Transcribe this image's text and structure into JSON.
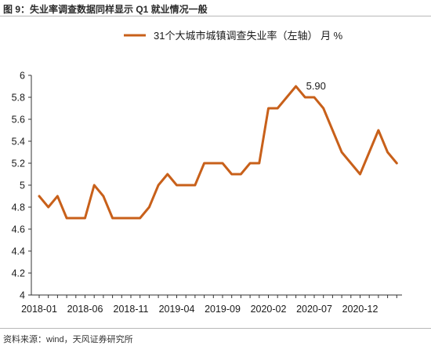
{
  "figure": {
    "title": "图 9：失业率调查数据同样显示 Q1 就业情况一般",
    "source": "资料来源：wind，天风证券研究所"
  },
  "chart_data": {
    "type": "line",
    "x": [
      "2018-01",
      "2018-02",
      "2018-03",
      "2018-04",
      "2018-05",
      "2018-06",
      "2018-07",
      "2018-08",
      "2018-09",
      "2018-10",
      "2018-11",
      "2018-12",
      "2019-01",
      "2019-02",
      "2019-03",
      "2019-04",
      "2019-05",
      "2019-06",
      "2019-07",
      "2019-08",
      "2019-09",
      "2019-10",
      "2019-11",
      "2019-12",
      "2020-01",
      "2020-02",
      "2020-03",
      "2020-04",
      "2020-05",
      "2020-06",
      "2020-07",
      "2020-08",
      "2020-09",
      "2020-10",
      "2020-11",
      "2020-12",
      "2021-01",
      "2021-02",
      "2021-03",
      "2021-04"
    ],
    "xticks": [
      "2018-01",
      "2018-06",
      "2018-11",
      "2019-04",
      "2019-09",
      "2020-02",
      "2020-07",
      "2020-12"
    ],
    "series": [
      {
        "name": "31个大城市城镇调查失业率（左轴） 月 %",
        "color": "#c8601a",
        "values": [
          4.9,
          4.8,
          4.9,
          4.7,
          4.7,
          4.7,
          5.0,
          4.9,
          4.7,
          4.7,
          4.7,
          4.7,
          4.8,
          5.0,
          5.1,
          5.0,
          5.0,
          5.0,
          5.2,
          5.2,
          5.2,
          5.1,
          5.1,
          5.2,
          5.2,
          5.7,
          5.7,
          5.8,
          5.9,
          5.8,
          5.8,
          5.7,
          5.5,
          5.3,
          5.2,
          5.1,
          5.3,
          5.5,
          5.3,
          5.2
        ]
      }
    ],
    "ylim": [
      4,
      6
    ],
    "yticks": [
      "4",
      "4.2",
      "4.4",
      "4.6",
      "4.8",
      "5",
      "5.2",
      "5.4",
      "5.6",
      "5.8",
      "6"
    ],
    "annotation": {
      "text": "5.90",
      "x": "2020-05",
      "y": 5.9
    },
    "grid": false,
    "legend": "top-center"
  }
}
